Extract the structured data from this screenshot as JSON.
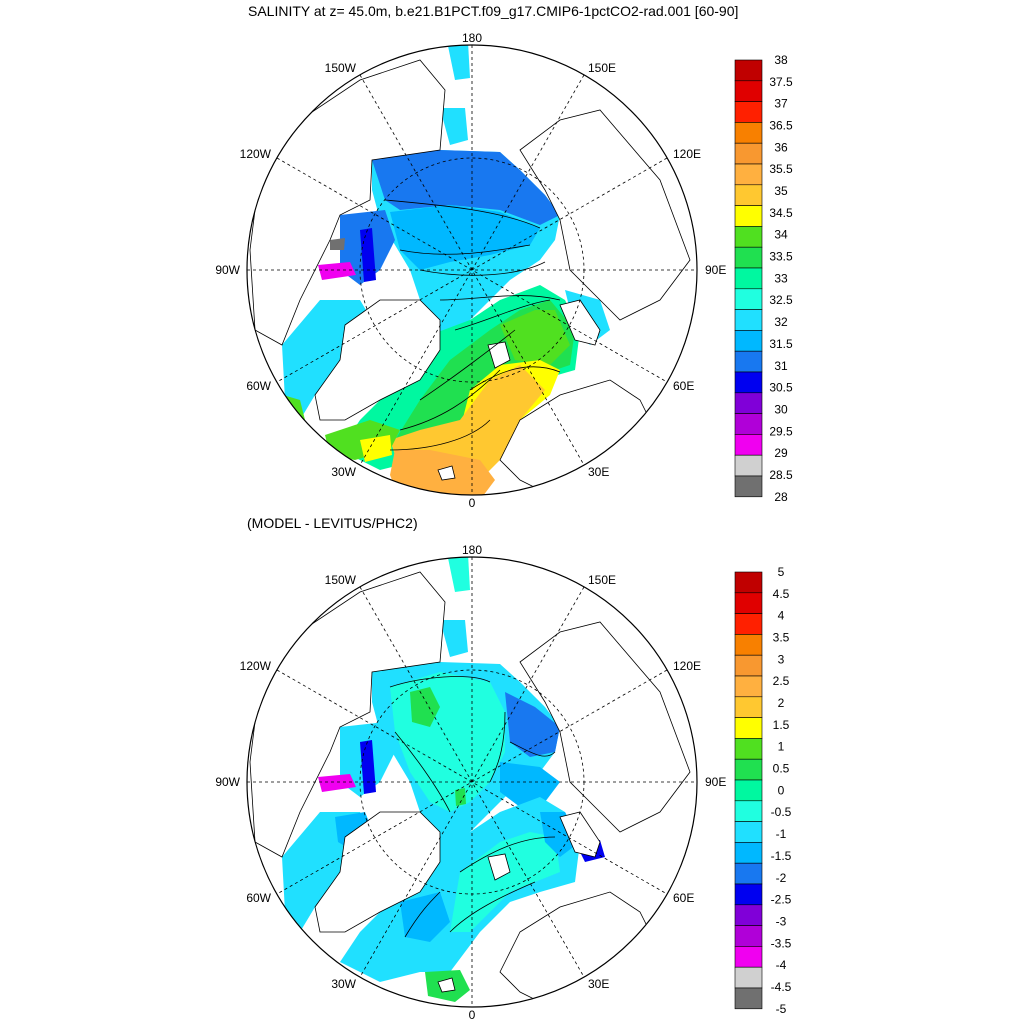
{
  "top_panel": {
    "title": "SALINITY at z=  45.0m, b.e21.B1PCT.f09_g17.CMIP6-1pctCO2-rad.001 [60-90]",
    "colorbar": {
      "labels": [
        "38",
        "37.5",
        "37",
        "36.5",
        "36",
        "35.5",
        "35",
        "34.5",
        "34",
        "33.5",
        "33",
        "32.5",
        "32",
        "31.5",
        "31",
        "30.5",
        "30",
        "29.5",
        "29",
        "28.5",
        "28"
      ],
      "colors": [
        "#c00000",
        "#e00000",
        "#ff2000",
        "#f88000",
        "#f89830",
        "#ffb040",
        "#ffc830",
        "#ffff00",
        "#50e020",
        "#20e050",
        "#00f8a0",
        "#20ffe0",
        "#20e0ff",
        "#00b8ff",
        "#1878f0",
        "#0000f0",
        "#8000d8",
        "#b000d8",
        "#f000f0",
        "#d0d0d0",
        "#707070"
      ]
    },
    "field_colors": {
      "ocean_a": "#20e0ff",
      "ocean_b": "#00b8ff",
      "ocean_c": "#1878f0",
      "green_a": "#50e020",
      "green_b": "#20e050",
      "teal": "#00f8a0",
      "yellow": "#ffff00",
      "orange": "#ffc830",
      "dark_orange": "#ffb040"
    }
  },
  "bottom_panel": {
    "title": "(MODEL - LEVITUS/PHC2)",
    "colorbar": {
      "labels": [
        "5",
        "4.5",
        "4",
        "3.5",
        "3",
        "2.5",
        "2",
        "1.5",
        "1",
        "0.5",
        "0",
        "-0.5",
        "-1",
        "-1.5",
        "-2",
        "-2.5",
        "-3",
        "-3.5",
        "-4",
        "-4.5",
        "-5"
      ],
      "colors": [
        "#c00000",
        "#e00000",
        "#ff2000",
        "#f88000",
        "#f89830",
        "#ffb040",
        "#ffc830",
        "#ffff00",
        "#50e020",
        "#20e050",
        "#00f8a0",
        "#20ffe0",
        "#20e0ff",
        "#00b8ff",
        "#1878f0",
        "#0000f0",
        "#8000d8",
        "#b000d8",
        "#f000f0",
        "#d0d0d0",
        "#707070"
      ]
    },
    "field_colors": {
      "base": "#20e0ff",
      "light": "#20ffe0",
      "deep": "#00b8ff",
      "deeper": "#1878f0",
      "green": "#20e050",
      "blue_dark": "#0000f0",
      "magenta": "#f000f0"
    }
  },
  "map": {
    "lon_labels": [
      "180",
      "150E",
      "120E",
      "90E",
      "60E",
      "30E",
      "0",
      "30W",
      "60W",
      "90W",
      "120W",
      "150W"
    ]
  }
}
